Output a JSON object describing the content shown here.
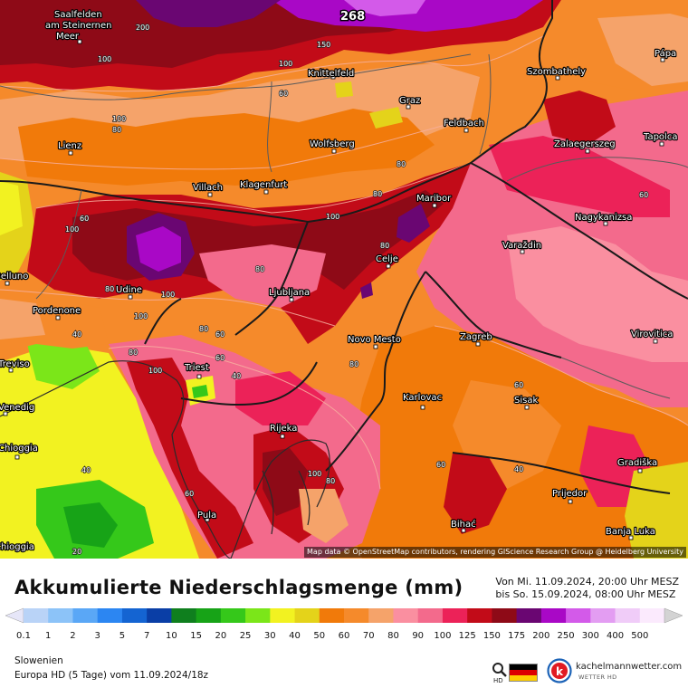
{
  "chart_data": {
    "type": "heatmap",
    "title": "Akkumulierte Niederschlagsmenge (mm)",
    "period": {
      "from": "Von Mi. 11.09.2024, 20:00 Uhr MESZ",
      "to": "bis So. 15.09.2024, 08:00 Uhr MESZ"
    },
    "region": "Slowenien",
    "model": "Europa HD (5 Tage) vom  11.09.2024/18z",
    "max_value_label": "268",
    "scale": {
      "values": [
        "0.1",
        "1",
        "2",
        "3",
        "5",
        "7",
        "10",
        "15",
        "20",
        "25",
        "30",
        "40",
        "50",
        "60",
        "70",
        "80",
        "90",
        "100",
        "125",
        "150",
        "175",
        "200",
        "250",
        "300",
        "400",
        "500"
      ],
      "colors": [
        "#e6e6f8",
        "#b9d3f7",
        "#8cc3f8",
        "#5aa7f6",
        "#2c86f2",
        "#1464d2",
        "#0a3ea6",
        "#0f7f1e",
        "#17a317",
        "#35c81a",
        "#7be619",
        "#f2f221",
        "#e4d31a",
        "#f17a0a",
        "#f58a2b",
        "#f5a36a",
        "#fa8fa0",
        "#f36a8c",
        "#ec2258",
        "#c20b18",
        "#8e0a17",
        "#6a0672",
        "#a908c6",
        "#d35ae9",
        "#e39df2",
        "#f0ccf8",
        "#fbeafd",
        "#d3d3d3"
      ]
    },
    "cities": [
      {
        "name": "Saalfelden\nam Steinernen\nMeer"
      },
      {
        "name": "Knittelfeld"
      },
      {
        "name": "Szombathely"
      },
      {
        "name": "Pápa"
      },
      {
        "name": "Graz"
      },
      {
        "name": "Feldbach"
      },
      {
        "name": "Lienz"
      },
      {
        "name": "Wolfsberg"
      },
      {
        "name": "Zalaegerszeg"
      },
      {
        "name": "Tapolca"
      },
      {
        "name": "Villach"
      },
      {
        "name": "Klagenfurt"
      },
      {
        "name": "Maribor"
      },
      {
        "name": "Nagykanizsa"
      },
      {
        "name": "Varaždin"
      },
      {
        "name": "Celje"
      },
      {
        "name": "Udine"
      },
      {
        "name": "Ljubljana"
      },
      {
        "name": "Pordenone"
      },
      {
        "name": "Novo Mesto"
      },
      {
        "name": "Zagreb"
      },
      {
        "name": "Virovitica"
      },
      {
        "name": "Triest"
      },
      {
        "name": "Karlovac"
      },
      {
        "name": "Sisak"
      },
      {
        "name": "Venedig"
      },
      {
        "name": "Rijeka"
      },
      {
        "name": "Gradiška"
      },
      {
        "name": "Chioggia"
      },
      {
        "name": "Prijedor"
      },
      {
        "name": "Pula"
      },
      {
        "name": "Bihać"
      },
      {
        "name": "Banja Luka"
      },
      {
        "name": "Treviso"
      },
      {
        "name": "Belluno"
      },
      {
        "name": "Chioggia"
      }
    ],
    "contour_labels": [
      "200",
      "150",
      "100",
      "100",
      "60",
      "100",
      "80",
      "80",
      "60",
      "80",
      "100",
      "100",
      "60",
      "80",
      "80",
      "80",
      "100",
      "100",
      "80",
      "40",
      "80",
      "100",
      "60",
      "40",
      "80",
      "60",
      "40",
      "60",
      "80",
      "100",
      "40",
      "20",
      "60",
      "60"
    ]
  },
  "attribution": "Map data © OpenStreetMap contributors, rendering GIScience Research Group @ Heidelberg University",
  "brand": {
    "name": "kachelmannwetter.com",
    "sub": "WETTER HD",
    "flag_colors": [
      "#000000",
      "#dd0000",
      "#ffce00"
    ],
    "accent": "#1c63b7"
  }
}
